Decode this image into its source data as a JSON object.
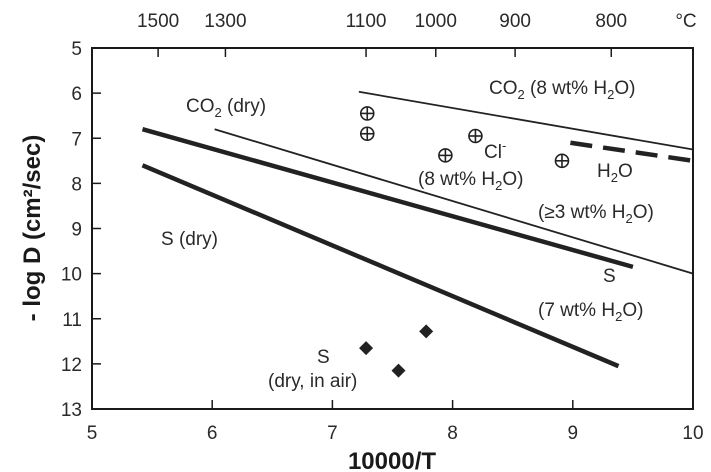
{
  "chart_data": {
    "type": "line",
    "xlabel": "10000/T",
    "ylabel": "- log D (cm²/sec)",
    "xlim": [
      5,
      10
    ],
    "ylim": [
      5,
      13
    ],
    "y_inverted": true,
    "grid": false,
    "x_ticks": [
      5,
      6,
      7,
      8,
      9,
      10
    ],
    "y_ticks": [
      5,
      6,
      7,
      8,
      9,
      10,
      11,
      12,
      13
    ],
    "top_axis": {
      "unit_label": "°C",
      "ticks": [
        {
          "label": "1500",
          "x": 5.55
        },
        {
          "label": "1300",
          "x": 6.11
        },
        {
          "label": "1100",
          "x": 7.28
        },
        {
          "label": "1000",
          "x": 7.86
        },
        {
          "label": "900",
          "x": 8.52
        },
        {
          "label": "800",
          "x": 9.32
        }
      ]
    },
    "series": [
      {
        "label_id": "s_dry",
        "style": "thick",
        "x": [
          5.42,
          9.38
        ],
        "y": [
          7.6,
          12.05
        ]
      },
      {
        "label_id": "s_wet",
        "style": "thick",
        "x": [
          5.42,
          9.5
        ],
        "y": [
          6.8,
          9.85
        ]
      },
      {
        "label_id": "co2_dry",
        "style": "thin",
        "x": [
          6.02,
          10.0
        ],
        "y": [
          6.8,
          10.0
        ]
      },
      {
        "label_id": "co2_wet",
        "style": "thin",
        "x": [
          7.22,
          10.0
        ],
        "y": [
          5.97,
          7.25
        ]
      },
      {
        "label_id": "h2o",
        "style": "dashed",
        "x": [
          8.98,
          10.0
        ],
        "y": [
          7.1,
          7.5
        ]
      }
    ],
    "cl_points": {
      "label_id": "cl",
      "marker": "circle-plus",
      "x": [
        7.29,
        7.29,
        7.94,
        8.19,
        8.91
      ],
      "y": [
        6.45,
        6.9,
        7.38,
        6.95,
        7.5
      ]
    },
    "s_air_points": {
      "label_id": "s_air",
      "marker": "diamond",
      "x": [
        7.28,
        7.55,
        7.78
      ],
      "y": [
        11.65,
        12.15,
        11.28
      ]
    },
    "annotations": {
      "co2_wet": {
        "main": "CO",
        "sub": "2",
        "rest": " (8 wt% H",
        "sub2": "2",
        "end": "O)"
      },
      "co2_dry": {
        "main": "CO",
        "sub": "2",
        "rest": " (dry)"
      },
      "cl": {
        "main": "Cl",
        "sup": "-"
      },
      "cl_cond": {
        "main": "(8 wt% H",
        "sub": "2",
        "rest": "O)"
      },
      "h2o": {
        "main": "H",
        "sub": "2",
        "rest": "O"
      },
      "h2o_cond": {
        "main": "(≥3 wt% H",
        "sub": "2",
        "rest": "O)"
      },
      "s_dry": {
        "main": "S (dry)"
      },
      "s_wet": {
        "main": "S"
      },
      "s_wet_cond": {
        "main": "(7 wt% H",
        "sub": "2",
        "rest": "O)"
      },
      "s_air": {
        "main": "S"
      },
      "s_air_cond": {
        "main": "(dry, in air)"
      }
    }
  }
}
